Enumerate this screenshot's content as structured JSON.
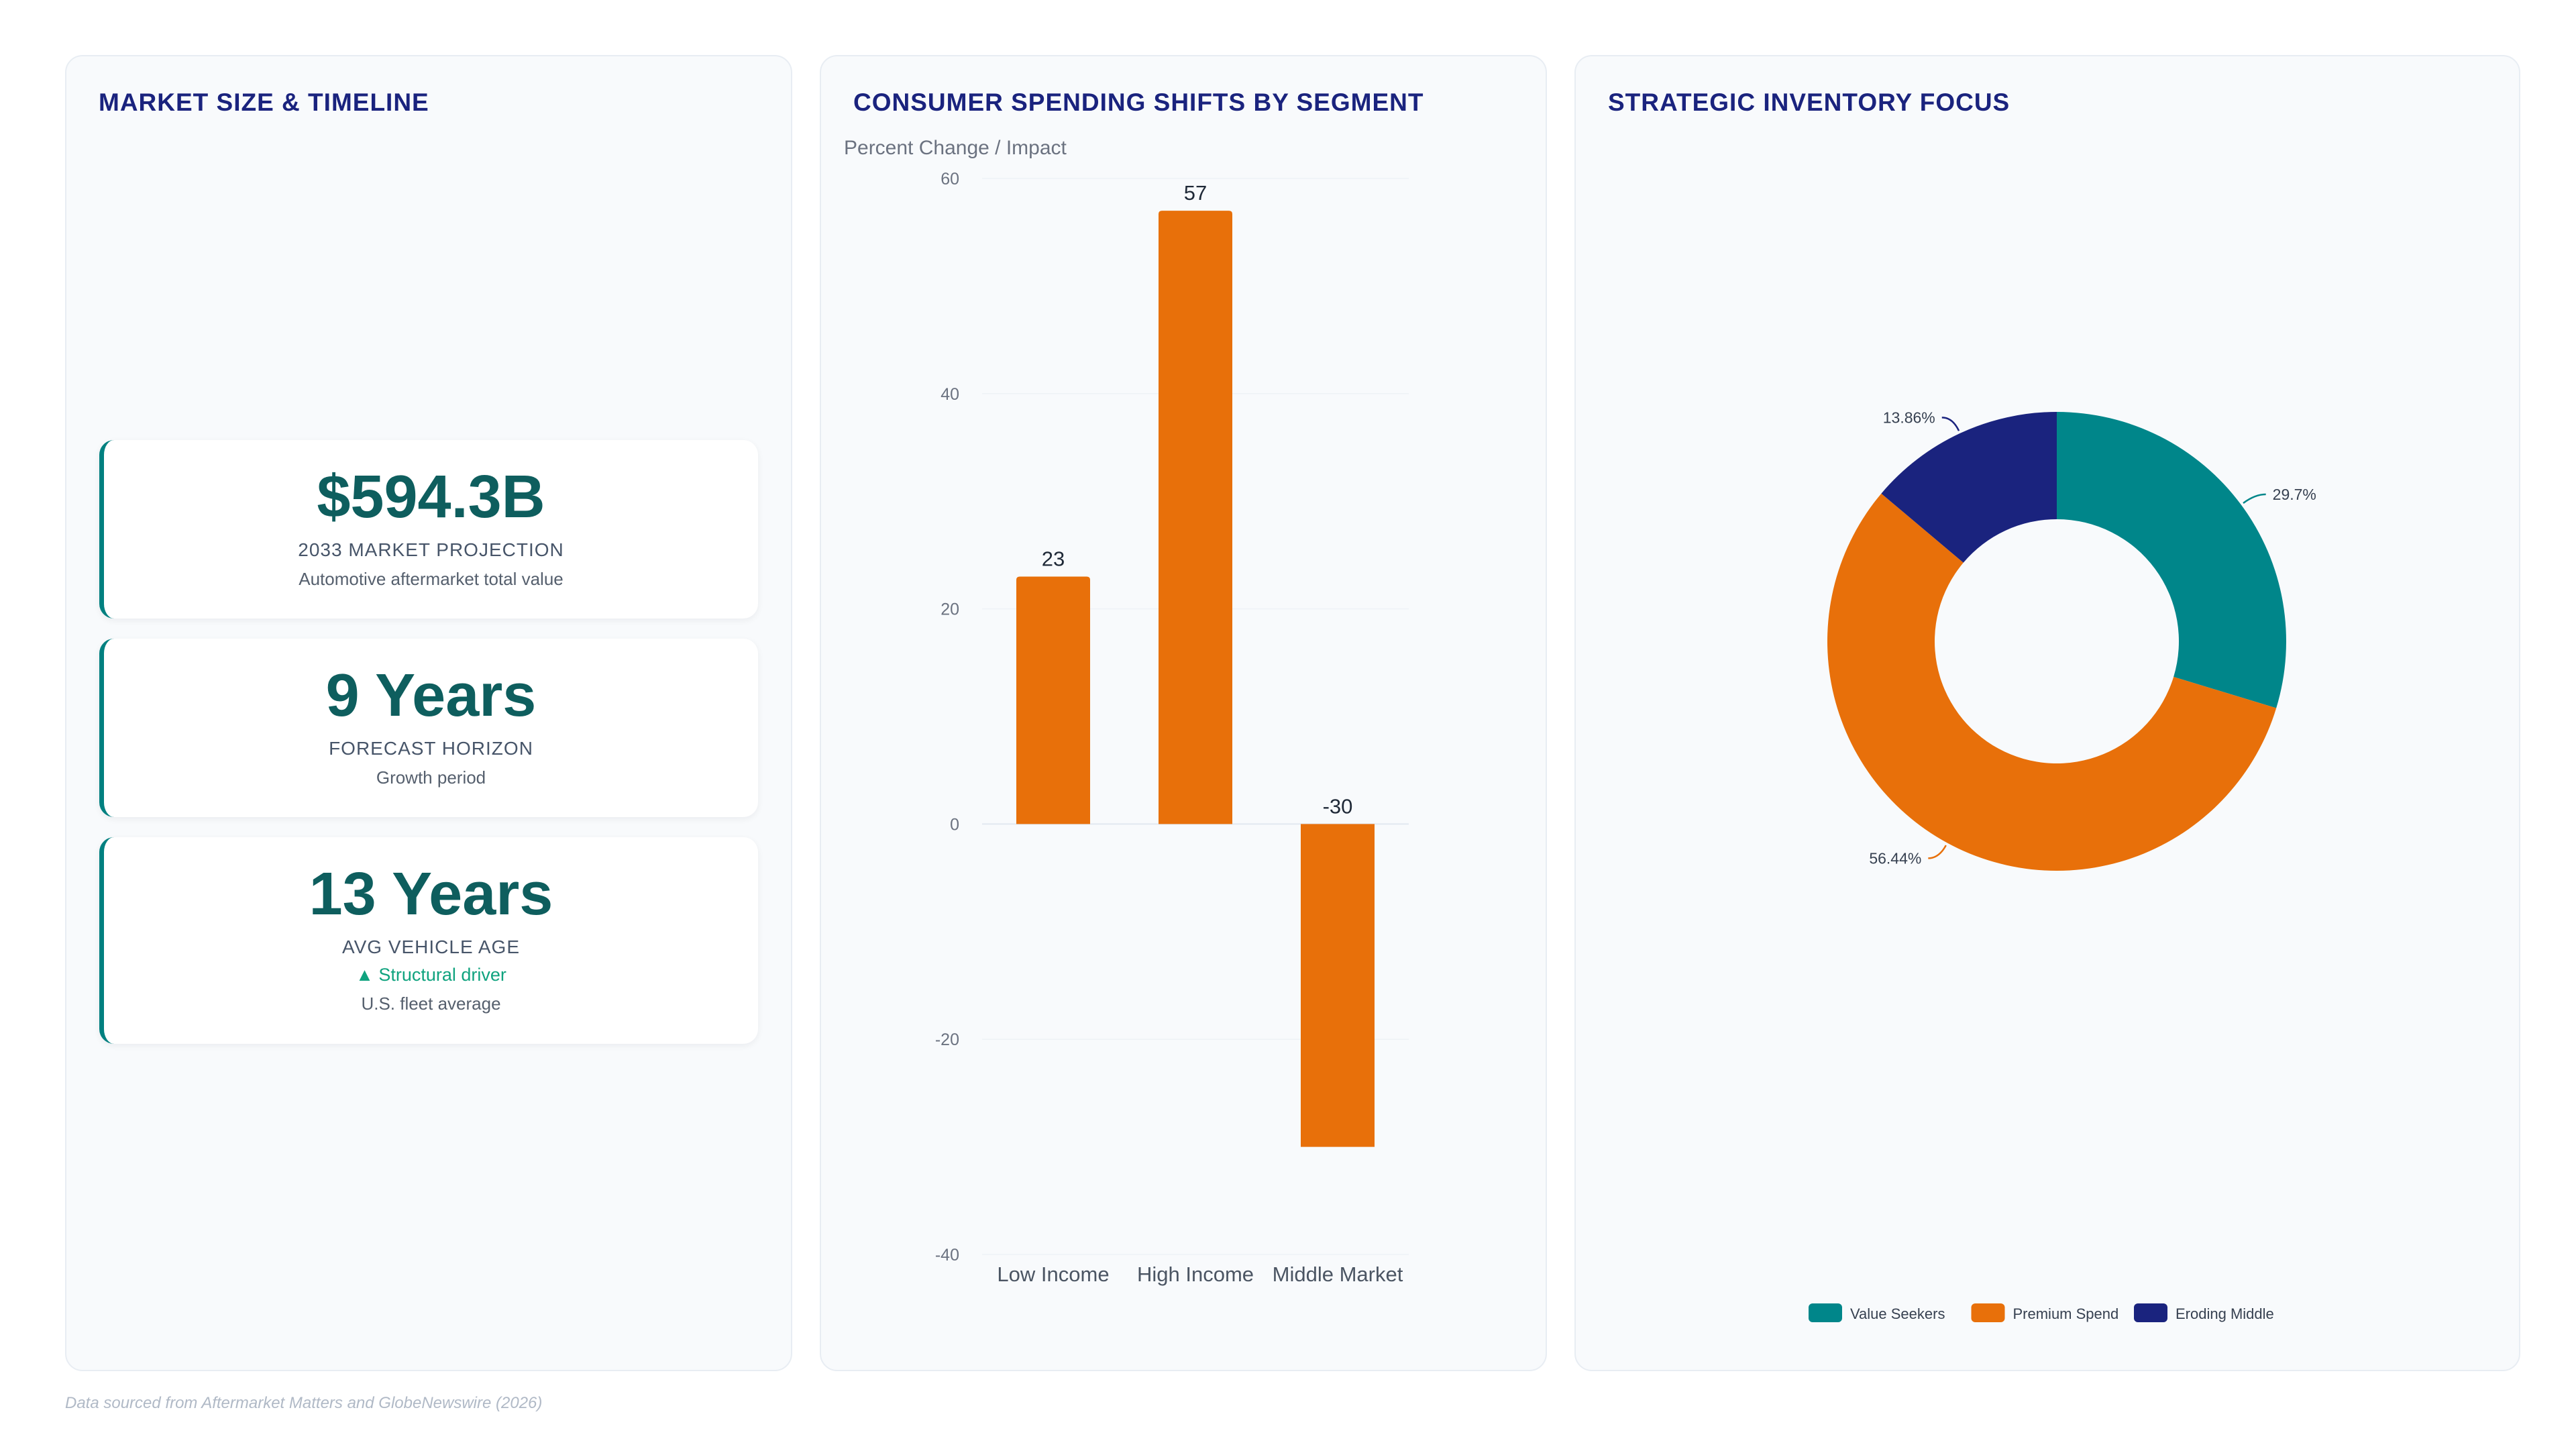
{
  "market": {
    "title": "MARKET SIZE & TIMELINE",
    "kpis": [
      {
        "value": "$594.3B",
        "label": "2033 MARKET PROJECTION",
        "sub": "Automotive aftermarket total value"
      },
      {
        "value": "9 Years",
        "label": "FORECAST HORIZON",
        "sub": "Growth period"
      },
      {
        "value": "13 Years",
        "label": "AVG VEHICLE AGE",
        "trend": "▲ Structural driver",
        "sub": "U.S. fleet average"
      }
    ]
  },
  "spending": {
    "title": "CONSUMER SPENDING SHIFTS BY SEGMENT"
  },
  "inventory": {
    "title": "STRATEGIC INVENTORY FOCUS"
  },
  "footnote": "Data sourced from Aftermarket Matters and GlobeNewswire (2026)",
  "colors": {
    "teal": "#00868a",
    "orange": "#e8700a",
    "navy": "#1a237e",
    "title": "#1a237e"
  },
  "chart_data": [
    {
      "type": "bar",
      "title": "",
      "ylabel": "Percent Change / Impact",
      "xlabel": "",
      "categories": [
        "Low Income",
        "High Income",
        "Middle Market"
      ],
      "values": [
        23,
        57,
        -30
      ],
      "data_labels": [
        "23",
        "57",
        "-30"
      ],
      "ylim": [
        -40,
        60
      ],
      "yticks": [
        60,
        40,
        20,
        0,
        -20,
        -40
      ],
      "grid": true,
      "color": "#e8700a"
    },
    {
      "type": "pie",
      "variant": "donut",
      "title": "",
      "slices": [
        {
          "name": "Value Seekers",
          "value": 29.7,
          "label": "29.7%",
          "color": "#00868a"
        },
        {
          "name": "Premium Spend",
          "value": 56.44,
          "label": "56.44%",
          "color": "#e8700a"
        },
        {
          "name": "Eroding Middle",
          "value": 13.86,
          "label": "13.86%",
          "color": "#1a237e"
        }
      ],
      "legend": "bottom"
    }
  ]
}
